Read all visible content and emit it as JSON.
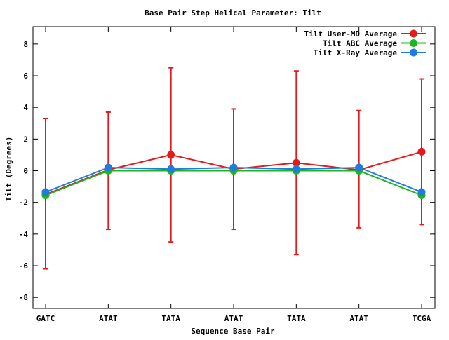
{
  "chart_data": {
    "type": "line",
    "title": "Base Pair Step Helical Parameter: Tilt",
    "xlabel": "Sequence Base Pair",
    "ylabel": "Tilt (Degrees)",
    "categories": [
      "GATC",
      "ATAT",
      "TATA",
      "ATAT",
      "TATA",
      "ATAT",
      "TCGA"
    ],
    "ylim": [
      -8.7,
      9.1
    ],
    "yticks": [
      -8,
      -6,
      -4,
      -2,
      0,
      2,
      4,
      6,
      8
    ],
    "ytick_labels": [
      "-8",
      "-6",
      "-4",
      "-2",
      "0",
      "2",
      "4",
      "6",
      "8"
    ],
    "grid": false,
    "legend_position": "top-right",
    "series": [
      {
        "name": "Tilt User-MD Average",
        "color": "#e41a1c",
        "values": [
          -1.5,
          0.05,
          1.0,
          0.1,
          0.5,
          0.05,
          1.2
        ],
        "error_low": [
          -6.2,
          -3.7,
          -4.5,
          -3.7,
          -5.3,
          -3.6,
          -3.4
        ],
        "error_high": [
          3.3,
          3.7,
          6.5,
          3.9,
          6.3,
          3.8,
          5.8
        ]
      },
      {
        "name": "Tilt ABC Average",
        "color": "#1db61d",
        "values": [
          -1.55,
          0.0,
          0.0,
          0.0,
          0.0,
          0.0,
          -1.55
        ]
      },
      {
        "name": "Tilt X-Ray Average",
        "color": "#1f7be0",
        "values": [
          -1.35,
          0.2,
          0.1,
          0.2,
          0.1,
          0.2,
          -1.35
        ]
      }
    ]
  }
}
